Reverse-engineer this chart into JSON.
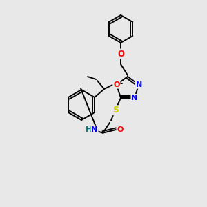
{
  "bg_color": "#e8e8e8",
  "bond_color": "#000000",
  "atom_colors": {
    "O": "#ff0000",
    "N": "#0000ff",
    "S": "#cccc00",
    "H_color": "#008080",
    "C": "#000000"
  },
  "lw": 1.4,
  "fs": 8.5
}
